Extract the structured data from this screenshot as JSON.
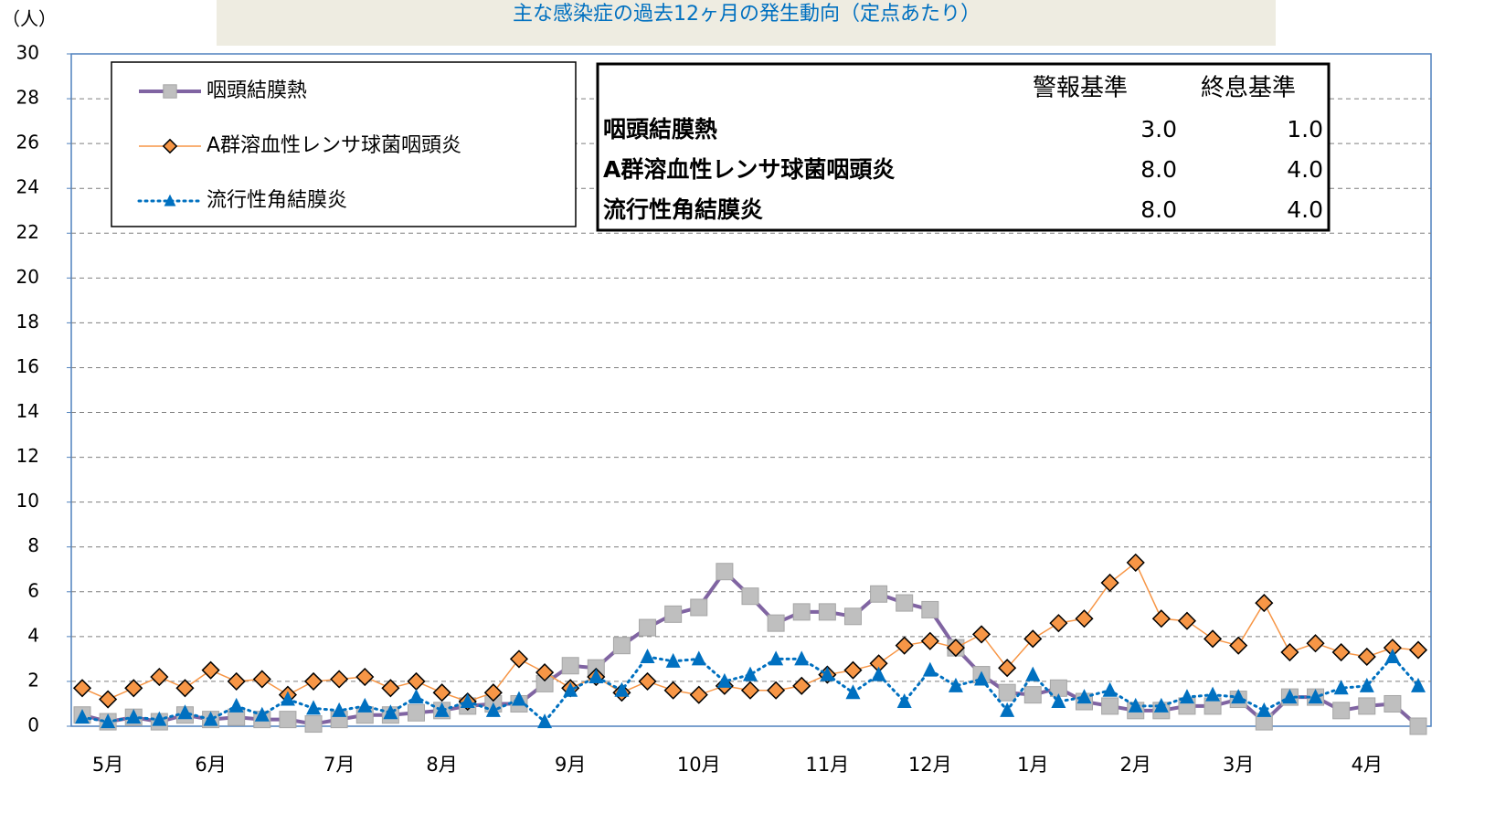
{
  "chart_data": {
    "type": "line",
    "title": "主な感染症の過去12ヶ月の発生動向（定点あたり）",
    "y_label": "（人）",
    "categories": [
      null,
      "5月",
      null,
      null,
      null,
      "6月",
      null,
      null,
      null,
      null,
      "7月",
      null,
      null,
      null,
      "8月",
      null,
      null,
      null,
      null,
      "9月",
      null,
      null,
      null,
      null,
      "10月",
      null,
      null,
      null,
      null,
      "11月",
      null,
      null,
      null,
      "12月",
      null,
      null,
      null,
      "1月",
      null,
      null,
      null,
      "2月",
      null,
      null,
      null,
      "3月",
      null,
      null,
      null,
      null,
      "4月",
      null,
      null
    ],
    "ylim": [
      0,
      30
    ],
    "yticks": [
      0,
      2,
      4,
      6,
      8,
      10,
      12,
      14,
      16,
      18,
      20,
      22,
      24,
      26,
      28,
      30
    ],
    "grid": true,
    "series": [
      {
        "name": "咽頭結膜熱",
        "color": "#8064a2",
        "marker": "square",
        "marker_color": "#bfbfbf",
        "values": [
          0.5,
          0.2,
          0.4,
          0.2,
          0.5,
          0.3,
          0.4,
          0.3,
          0.3,
          0.1,
          0.3,
          0.5,
          0.5,
          0.6,
          0.7,
          0.9,
          1.0,
          1.0,
          1.9,
          2.7,
          2.6,
          3.6,
          4.4,
          5.0,
          5.3,
          6.9,
          5.8,
          4.6,
          5.1,
          5.1,
          4.9,
          5.9,
          5.5,
          5.2,
          3.5,
          2.3,
          1.5,
          1.4,
          1.7,
          1.1,
          0.9,
          0.7,
          0.7,
          0.9,
          0.9,
          1.2,
          0.2,
          1.3,
          1.3,
          0.7,
          0.9,
          1.0,
          0.0
        ]
      },
      {
        "name": "A群溶血性レンサ球菌咽頭炎",
        "color": "#f79646",
        "marker": "diamond",
        "marker_color": "#f79646",
        "values": [
          1.7,
          1.2,
          1.7,
          2.2,
          1.7,
          2.5,
          2.0,
          2.1,
          1.4,
          2.0,
          2.1,
          2.2,
          1.7,
          2.0,
          1.5,
          1.1,
          1.5,
          3.0,
          2.4,
          1.7,
          2.2,
          1.5,
          2.0,
          1.6,
          1.4,
          1.8,
          1.6,
          1.6,
          1.8,
          2.3,
          2.5,
          2.8,
          3.6,
          3.8,
          3.5,
          4.1,
          2.6,
          3.9,
          4.6,
          4.8,
          6.4,
          7.3,
          4.8,
          4.7,
          3.9,
          3.6,
          5.5,
          3.3,
          3.7,
          3.3,
          3.1,
          3.5,
          3.4
        ]
      },
      {
        "name": "流行性角結膜炎",
        "color": "#0070c0",
        "marker": "triangle",
        "marker_color": "#0070c0",
        "values": [
          0.4,
          0.2,
          0.4,
          0.3,
          0.6,
          0.3,
          0.9,
          0.5,
          1.2,
          0.8,
          0.7,
          0.9,
          0.6,
          1.3,
          0.7,
          1.1,
          0.7,
          1.2,
          0.2,
          1.6,
          2.2,
          1.6,
          3.1,
          2.9,
          3.0,
          2.0,
          2.3,
          3.0,
          3.0,
          2.3,
          1.5,
          2.3,
          1.1,
          2.5,
          1.8,
          2.1,
          0.7,
          2.3,
          1.1,
          1.3,
          1.6,
          0.9,
          0.9,
          1.3,
          1.4,
          1.3,
          0.7,
          1.3,
          1.3,
          1.7,
          1.8,
          3.1,
          1.8
        ]
      }
    ]
  },
  "threshold_table": {
    "columns": [
      "警報基準",
      "終息基準"
    ],
    "rows": [
      {
        "name": "咽頭結膜熱",
        "values": [
          "3.0",
          "1.0"
        ]
      },
      {
        "name": "A群溶血性レンサ球菌咽頭炎",
        "values": [
          "8.0",
          "4.0"
        ]
      },
      {
        "name": "流行性角結膜炎",
        "values": [
          "8.0",
          "4.0"
        ]
      }
    ]
  }
}
